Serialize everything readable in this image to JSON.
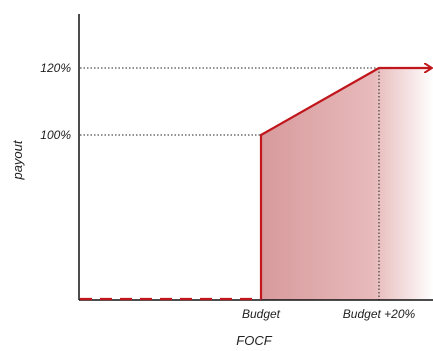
{
  "chart_data": {
    "type": "line",
    "xlabel": "FOCF",
    "ylabel": "payout",
    "x_ticks": [
      "Budget",
      "Budget +20%"
    ],
    "y_ticks": [
      "100%",
      "120%"
    ],
    "series": [
      {
        "points": [
          {
            "x": "0",
            "y": 0,
            "style": "dashed"
          },
          {
            "x": "Budget",
            "y": 0,
            "style": "dashed"
          },
          {
            "x": "Budget",
            "y": 100,
            "style": "solid"
          },
          {
            "x": "Budget +20%",
            "y": 120,
            "style": "solid"
          },
          {
            "x": "beyond",
            "y": 120,
            "style": "arrow"
          }
        ]
      }
    ],
    "colors": {
      "line": "#c0161c",
      "fill_start": "#d79a9c",
      "fill_end": "#ffffff",
      "axis": "#111111"
    },
    "grid": false,
    "reference_lines": [
      "dotted horizontal at 100%",
      "dotted horizontal at 120%",
      "dotted vertical at Budget +20%"
    ]
  }
}
